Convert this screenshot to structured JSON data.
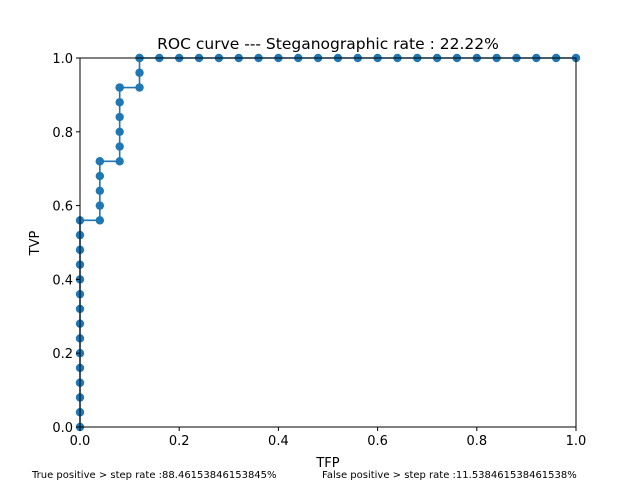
{
  "chart_data": {
    "type": "line",
    "title": "ROC curve --- Steganographic rate : 22.22%",
    "xlabel": "TFP",
    "ylabel": "TVP",
    "xlim": [
      0,
      1
    ],
    "ylim": [
      0,
      1
    ],
    "xticks": [
      "0.0",
      "0.2",
      "0.4",
      "0.6",
      "0.8",
      "1.0"
    ],
    "yticks": [
      "0.0",
      "0.2",
      "0.4",
      "0.6",
      "0.8",
      "1.0"
    ],
    "grid": false,
    "markers": true,
    "series": [
      {
        "color": "#1f77b4",
        "x": [
          0,
          0,
          0,
          0,
          0,
          0,
          0,
          0,
          0,
          0,
          0,
          0,
          0,
          0,
          0,
          0.04,
          0.04,
          0.04,
          0.04,
          0.04,
          0.04,
          0.08,
          0.08,
          0.08,
          0.08,
          0.08,
          0.08,
          0.08,
          0.12,
          0.12,
          0.12,
          0.12,
          0.16,
          0.2,
          0.24,
          0.28,
          0.32,
          0.36,
          0.4,
          0.44,
          0.48,
          0.52,
          0.56,
          0.6,
          0.64,
          0.68,
          0.72,
          0.76,
          0.8,
          0.84,
          0.88,
          0.92,
          0.96,
          1.0
        ],
        "y": [
          0,
          0.04,
          0.08,
          0.12,
          0.16,
          0.2,
          0.24,
          0.28,
          0.32,
          0.36,
          0.4,
          0.44,
          0.48,
          0.52,
          0.56,
          0.56,
          0.6,
          0.64,
          0.68,
          0.72,
          0.72,
          0.72,
          0.76,
          0.8,
          0.84,
          0.88,
          0.92,
          0.92,
          0.92,
          0.96,
          1.0,
          1.0,
          1.0,
          1.0,
          1.0,
          1.0,
          1.0,
          1.0,
          1.0,
          1.0,
          1.0,
          1.0,
          1.0,
          1.0,
          1.0,
          1.0,
          1.0,
          1.0,
          1.0,
          1.0,
          1.0,
          1.0,
          1.0,
          1.0
        ]
      }
    ]
  },
  "footer": {
    "true_positive": "True positive > step rate :88.46153846153845%",
    "false_positive": "False positive > step rate :11.538461538461538%"
  }
}
